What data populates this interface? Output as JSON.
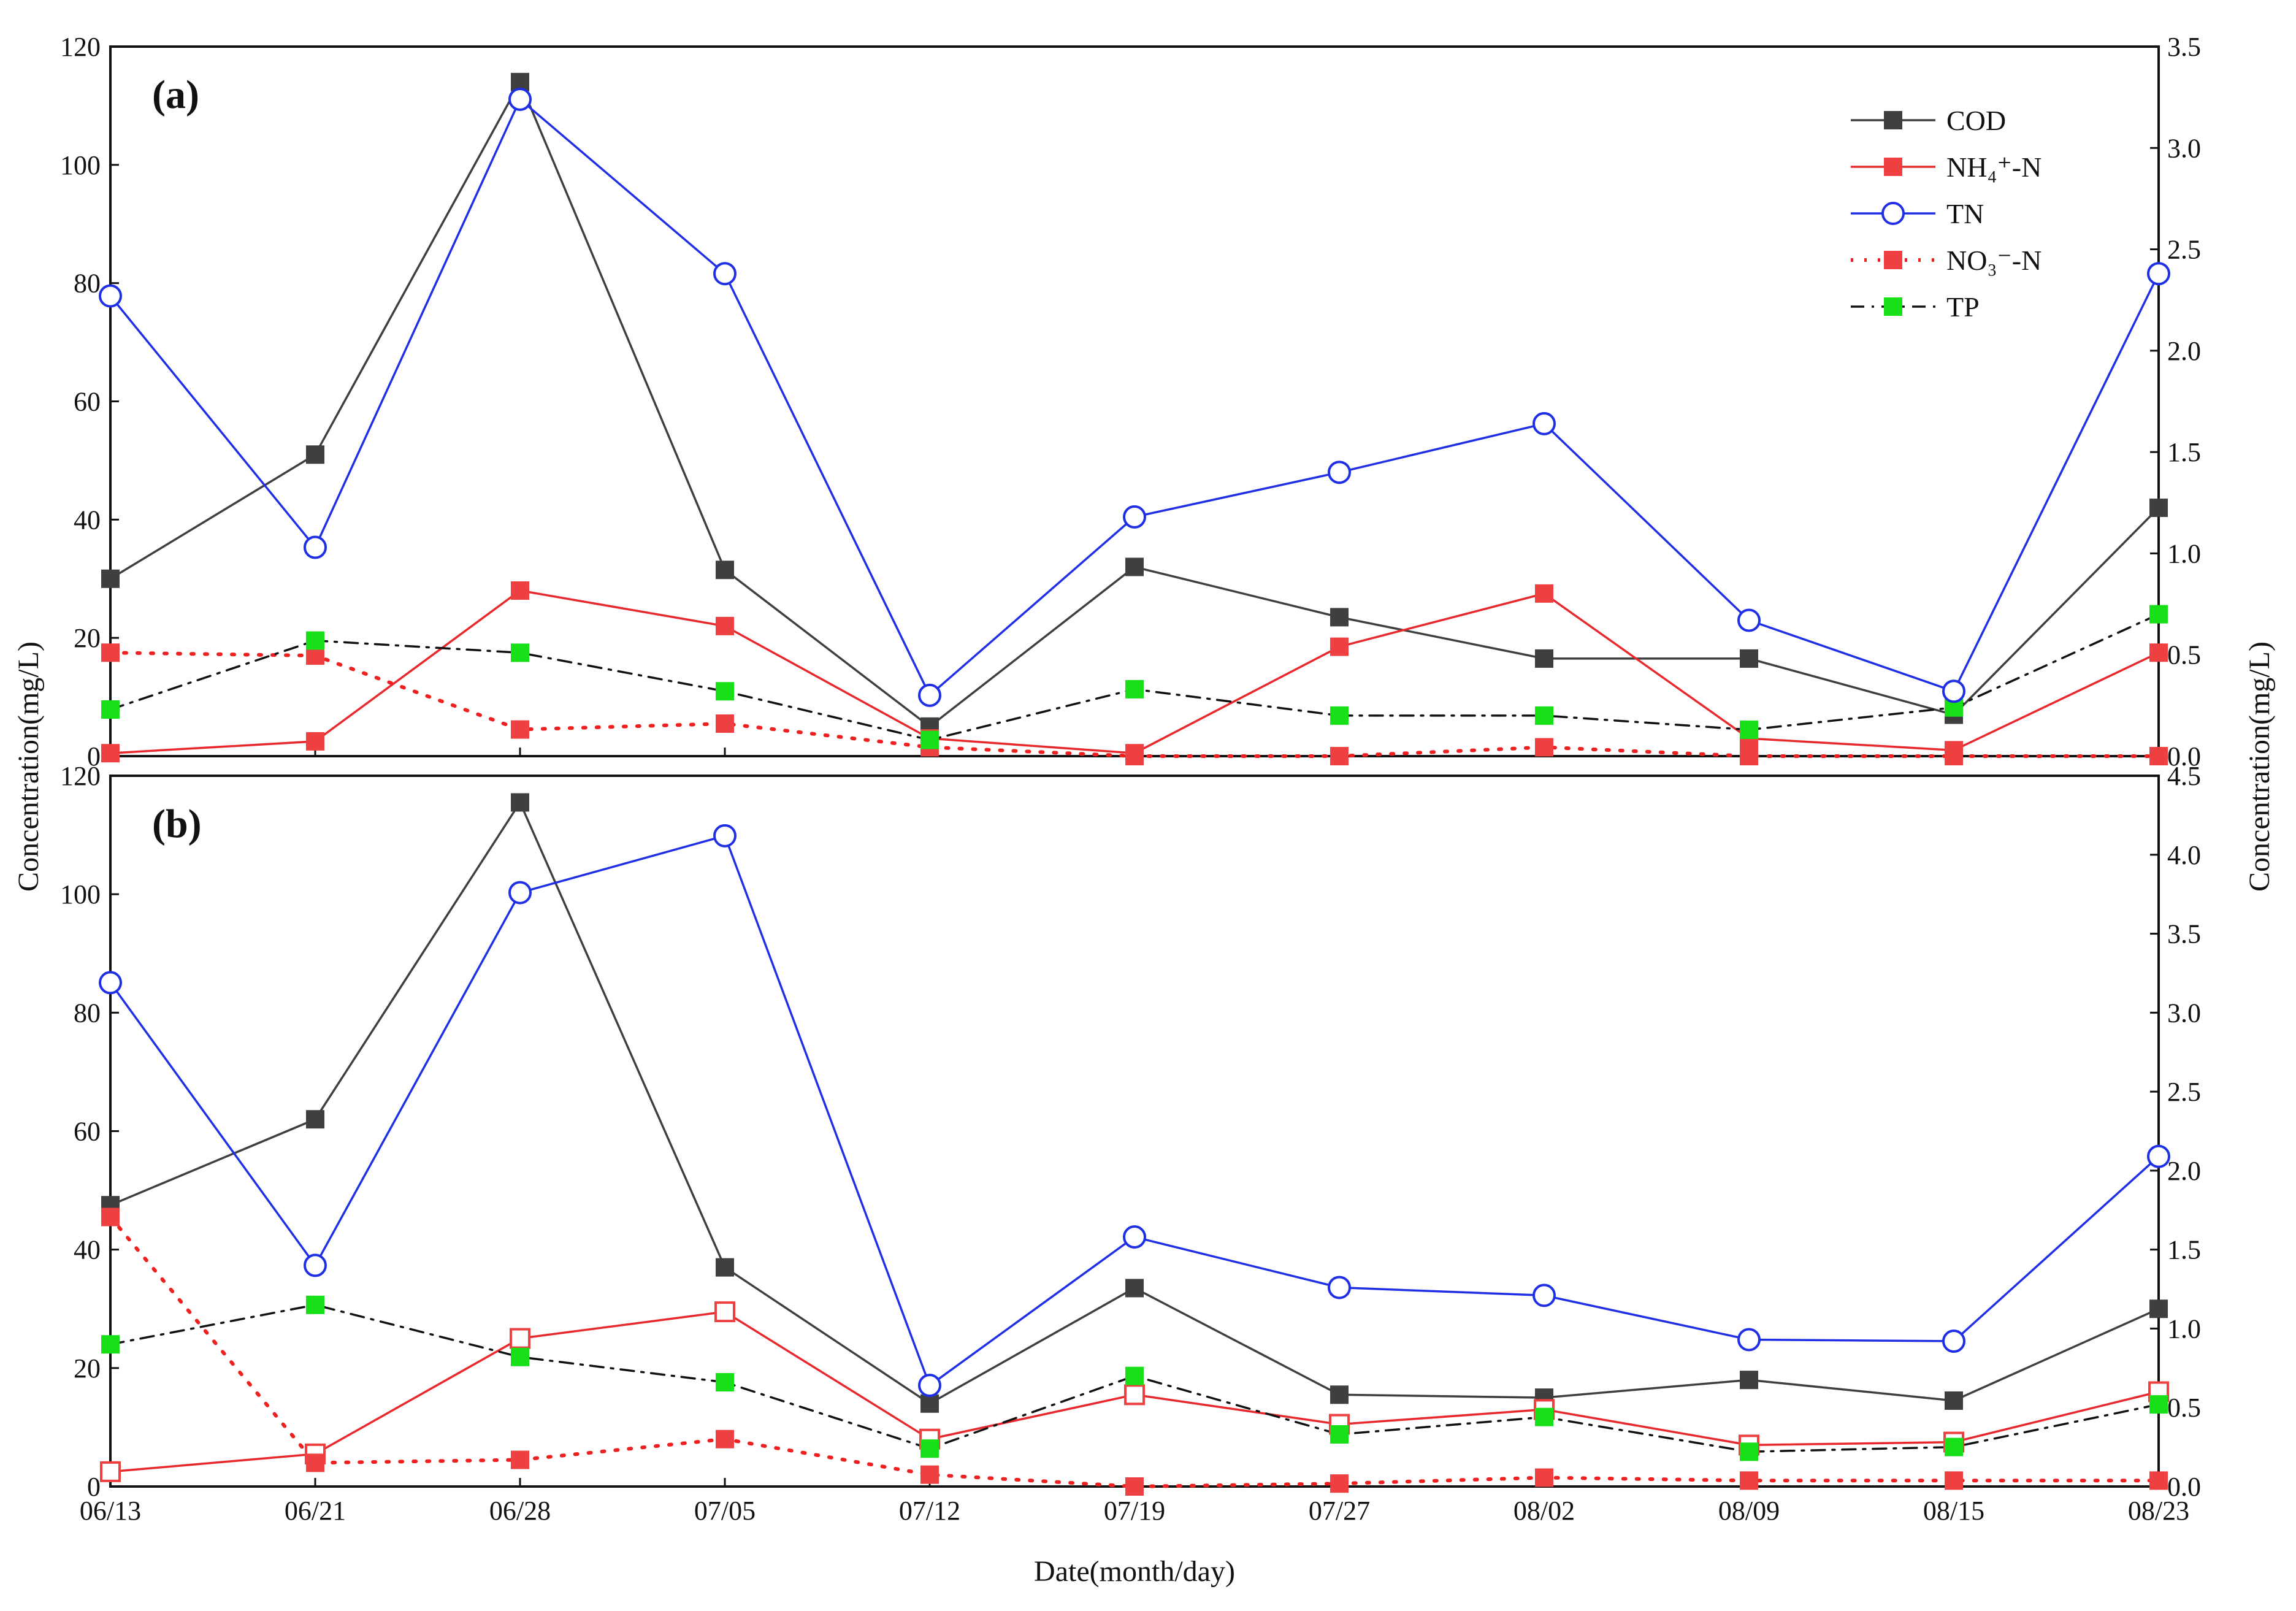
{
  "chart_data": {
    "type": "line",
    "xlabel": "Date(month/day)",
    "ylabel_left": "Concentration(mg/L)",
    "ylabel_right": "Concentration(mg/L)",
    "categories": [
      "06/13",
      "06/21",
      "06/28",
      "07/05",
      "07/12",
      "07/19",
      "07/27",
      "08/02",
      "08/09",
      "08/15",
      "08/23"
    ],
    "legend": {
      "position": "top-right",
      "entries": [
        {
          "label": "COD",
          "key": "COD"
        },
        {
          "label": "NH₄⁺-N",
          "key": "NH4N"
        },
        {
          "label": "TN",
          "key": "TN"
        },
        {
          "label": "NO₃⁻-N",
          "key": "NO3N"
        },
        {
          "label": "TP",
          "key": "TP"
        }
      ]
    },
    "styles": {
      "COD": {
        "color": "#3f3f3f",
        "dash": "none",
        "marker": "square",
        "marker_color": "#3f3f3f"
      },
      "NH4N": {
        "color": "#e8282c",
        "dash": "none",
        "marker": "square",
        "marker_color": "#ee4040"
      },
      "TN": {
        "color": "#1f2fe6",
        "dash": "none",
        "marker": "circle-open",
        "marker_color": "#1f2fe6"
      },
      "NO3N": {
        "color": "#ee2020",
        "dash": "dot",
        "marker": "square",
        "marker_color": "#ee4040"
      },
      "TP": {
        "color": "#111111",
        "dash": "dashdot",
        "marker": "square",
        "marker_color": "#18e018"
      }
    },
    "panels": [
      {
        "label": "(a)",
        "ylim_left": [
          0,
          120
        ],
        "yticks_left": [
          0,
          20,
          40,
          60,
          80,
          100,
          120
        ],
        "ylim_right": [
          0,
          3.5
        ],
        "yticks_right": [
          "0.0",
          "0.5",
          "1.0",
          "1.5",
          "2.0",
          "2.5",
          "3.0",
          "3.5"
        ],
        "series": [
          {
            "name": "COD",
            "key": "COD",
            "axis": "left",
            "values": [
              30,
              51,
              114,
              31.5,
              5,
              32,
              23.5,
              16.5,
              16.5,
              7,
              42
            ]
          },
          {
            "name": "NH₄⁺-N",
            "key": "NH4N",
            "axis": "left",
            "values": [
              0.5,
              2.5,
              28,
              22,
              3,
              0.5,
              18.5,
              27.5,
              3,
              1,
              17.5
            ]
          },
          {
            "name": "NO₃⁻-N",
            "key": "NO3N",
            "axis": "left",
            "values": [
              17.5,
              17,
              4.5,
              5.5,
              1.5,
              0,
              0,
              1.5,
              0,
              0,
              0
            ]
          },
          {
            "name": "TN",
            "key": "TN",
            "axis": "right",
            "values": [
              2.27,
              1.03,
              3.24,
              2.38,
              0.3,
              1.18,
              1.4,
              1.64,
              0.67,
              0.32,
              2.38
            ]
          },
          {
            "name": "TP",
            "key": "TP",
            "axis": "right",
            "values": [
              0.23,
              0.57,
              0.51,
              0.32,
              0.08,
              0.33,
              0.2,
              0.2,
              0.13,
              0.24,
              0.7
            ]
          }
        ]
      },
      {
        "label": "(b)",
        "ylim_left": [
          0,
          120
        ],
        "yticks_left": [
          0,
          20,
          40,
          60,
          80,
          100,
          120
        ],
        "ylim_right": [
          0,
          4.5
        ],
        "yticks_right": [
          "0.0",
          "0.5",
          "1.0",
          "1.5",
          "2.0",
          "2.5",
          "3.0",
          "3.5",
          "4.0",
          "4.5"
        ],
        "series": [
          {
            "name": "COD",
            "key": "COD",
            "axis": "left",
            "values": [
              47.5,
              62,
              115.5,
              37,
              14,
              33.5,
              15.5,
              15,
              18,
              14.5,
              30
            ]
          },
          {
            "name": "NH₄⁺-N",
            "key": "NH4N",
            "axis": "left",
            "values": [
              2.5,
              5.5,
              25,
              29.5,
              8,
              15.5,
              10.5,
              13,
              7,
              7.5,
              16
            ],
            "open_markers": true
          },
          {
            "name": "NO₃⁻-N",
            "key": "NO3N",
            "axis": "left",
            "values": [
              45.5,
              4,
              4.5,
              8,
              2,
              0,
              0.5,
              1.5,
              1,
              1,
              1
            ]
          },
          {
            "name": "TN",
            "key": "TN",
            "axis": "right",
            "values": [
              3.19,
              1.4,
              3.76,
              4.12,
              0.64,
              1.58,
              1.26,
              1.21,
              0.93,
              0.92,
              2.09
            ]
          },
          {
            "name": "TP",
            "key": "TP",
            "axis": "right",
            "values": [
              0.9,
              1.15,
              0.82,
              0.66,
              0.24,
              0.7,
              0.33,
              0.44,
              0.22,
              0.25,
              0.52
            ]
          }
        ]
      }
    ]
  }
}
